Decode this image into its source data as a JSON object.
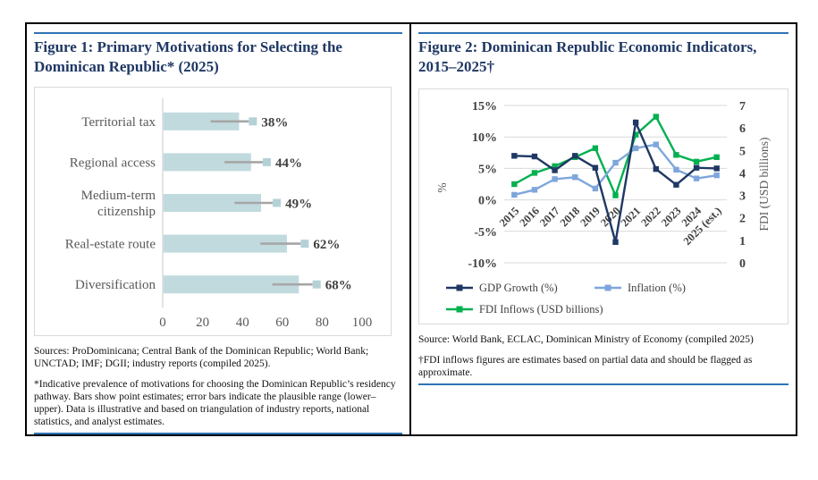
{
  "theme": {
    "title_color": "#1f3864",
    "rule_color": "#2e74b5",
    "grid_color": "#d9d9d9",
    "axis_text_color": "#595959"
  },
  "figure1": {
    "title": "Figure 1: Primary Motivations for Selecting the Dominican Republic* (2025)",
    "sources": "Sources: ProDominicana; Central Bank of the Dominican Republic; World Bank; UNCTAD; IMF; DGII; industry reports (compiled 2025).",
    "footnote": "*Indicative prevalence of motivations for choosing the Dominican Republic’s residency pathway. Bars show point estimates; error bars indicate the plausible range (lower–upper). Data is illustrative and based on triangulation of industry reports, national statistics, and analyst estimates."
  },
  "figure2": {
    "title": "Figure 2: Dominican Republic Economic Indicators, 2015–2025†",
    "source": "Source: World Bank, ECLAC, Dominican Ministry of Economy (compiled 2025)",
    "footnote": "†FDI inflows figures are estimates based on partial data and should be flagged as approximate."
  },
  "chart_data": [
    {
      "id": "primary-motivations",
      "type": "bar",
      "orientation": "horizontal",
      "categories": [
        "Territorial tax",
        "Regional access",
        "Medium-term citizenship",
        "Real-estate route",
        "Diversification"
      ],
      "values": [
        38,
        44,
        49,
        62,
        68
      ],
      "value_labels": [
        "38%",
        "44%",
        "49%",
        "62%",
        "68%"
      ],
      "error_lower": [
        24,
        31,
        36,
        49,
        55
      ],
      "error_upper": [
        45,
        52,
        57,
        71,
        77
      ],
      "xlim": [
        0,
        100
      ],
      "x_ticks": [
        0,
        20,
        40,
        60,
        80,
        100
      ],
      "grid": false,
      "bar_color": "#c1dade",
      "error_color": "#a6a6a6",
      "marker_color": "#b5d1d8",
      "axis_line_color": "#d9d9d9"
    },
    {
      "id": "economic-indicators",
      "type": "line",
      "x": [
        "2015",
        "2016",
        "2017",
        "2018",
        "2019",
        "2020",
        "2021",
        "2022",
        "2023",
        "2024",
        "2025 (est.)"
      ],
      "series": [
        {
          "name": "GDP Growth (%)",
          "axis": "left",
          "color": "#1f3864",
          "values": [
            7.0,
            6.9,
            4.7,
            7.0,
            5.1,
            -6.7,
            12.3,
            4.9,
            2.4,
            5.1,
            5.0
          ]
        },
        {
          "name": "Inflation (%)",
          "axis": "left",
          "color": "#7ea6dc",
          "values": [
            0.8,
            1.6,
            3.3,
            3.6,
            1.8,
            5.9,
            8.2,
            8.8,
            4.8,
            3.4,
            3.9
          ]
        },
        {
          "name": "FDI Inflows (USD billions)",
          "axis": "right",
          "color": "#00b050",
          "values": [
            3.5,
            4.0,
            4.3,
            4.7,
            5.1,
            3.0,
            5.7,
            6.5,
            4.8,
            4.5,
            4.7
          ]
        }
      ],
      "left_axis": {
        "label": "%",
        "min": -10,
        "max": 15,
        "ticks": [
          "15%",
          "10%",
          "5%",
          "0%",
          "-5%",
          "-10%"
        ],
        "tick_values": [
          15,
          10,
          5,
          0,
          -5,
          -10
        ]
      },
      "right_axis": {
        "label": "FDI (USD billions)",
        "min": 0,
        "max": 7,
        "ticks": [
          7,
          6,
          5,
          4,
          3,
          2,
          1,
          0
        ]
      },
      "grid": true,
      "legend_position": "bottom",
      "legend": [
        "GDP Growth (%)",
        "Inflation (%)",
        "FDI Inflows (USD billions)"
      ]
    }
  ]
}
